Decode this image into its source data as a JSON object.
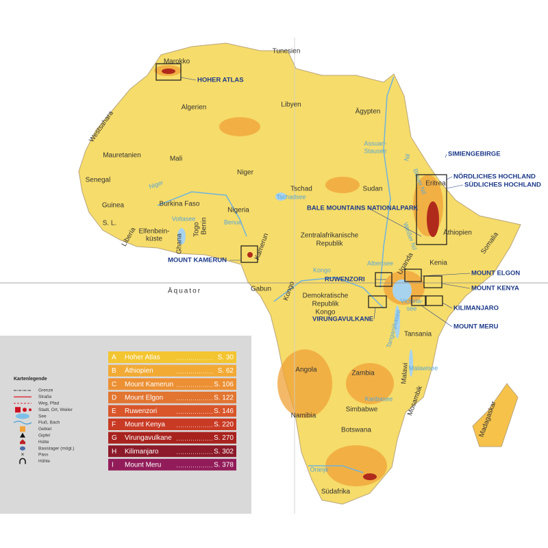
{
  "equator": "Äquator",
  "countries": [
    "Tunesien",
    "Marokko",
    "Algerien",
    "Libyen",
    "Ägypten",
    "Westsahara",
    "Mauretanien",
    "Mali",
    "Niger",
    "Tschad",
    "Sudan",
    "Eritrea",
    "Senegal",
    "Guinea",
    "Burkina Faso",
    "Nigeria",
    "S. L.",
    "Elfenbein-",
    "küste",
    "Liberia",
    "Ghana",
    "Togo",
    "Benin",
    "Kamerun",
    "Zentralafrikanische",
    "Republik",
    "Äthiopien",
    "Somalia",
    "Uganda",
    "Kenia",
    "Gabun",
    "Kongo",
    "Demokratische",
    "Republik",
    "Kongo",
    "Tansania",
    "Angola",
    "Zambia",
    "Malawi",
    "Mosambik",
    "Simbabwe",
    "Namibia",
    "Botswana",
    "Südafrika",
    "Madagaskar"
  ],
  "waters": [
    "Niger",
    "Voltasee",
    "Benue",
    "Tschadsee",
    "Nil",
    "Assuan-",
    "Stausee",
    "Blauer Nil",
    "Weißer Nil",
    "Kongo",
    "Albertsee",
    "Victoria-",
    "see",
    "Tanganjikasee",
    "Malawisee",
    "Karibasee",
    "Oranje"
  ],
  "regions": [
    "HOHER ATLAS",
    "SIMIENGEBIRGE",
    "NÖRDLICHES HOCHLAND",
    "SÜDLICHES HOCHLAND",
    "BALE MOUNTAINS NATIONALPARK",
    "MOUNT KAMERUN",
    "RUWENZORI",
    "MOUNT ELGON",
    "MOUNT KENYA",
    "KILIMANJARO",
    "VIRUNGAVULKANE",
    "MOUNT MERU"
  ],
  "legend": {
    "title": "Kartenlegende",
    "items": [
      "Grenze",
      "Straße",
      "Weg, Pfad",
      "Stadt, Ort, Weiler",
      "See",
      "Fluß, Bach",
      "Gebiet",
      "Gipfel",
      "Hütte",
      "Basislager (mögl.)",
      "Pass",
      "Höhle"
    ]
  },
  "index": [
    {
      "letter": "A",
      "name": "Hoher Atlas",
      "page": "S. 30",
      "color": "#f3c530"
    },
    {
      "letter": "B",
      "name": "Äthiopien",
      "page": "S. 62",
      "color": "#f2aa35"
    },
    {
      "letter": "C",
      "name": "Mount Kamerun",
      "page": "S. 106",
      "color": "#ec9033"
    },
    {
      "letter": "D",
      "name": "Mount Elgon",
      "page": "S. 122",
      "color": "#e27530"
    },
    {
      "letter": "E",
      "name": "Ruwenzori",
      "page": "S. 146",
      "color": "#d9562a"
    },
    {
      "letter": "F",
      "name": "Mount Kenya",
      "page": "S. 220",
      "color": "#c93a24"
    },
    {
      "letter": "G",
      "name": "Virungavulkane",
      "page": "S. 270",
      "color": "#a8221e"
    },
    {
      "letter": "H",
      "name": "Kilimanjaro",
      "page": "S. 302",
      "color": "#8c1a2a"
    },
    {
      "letter": "I",
      "name": "Mount Meru",
      "page": "S. 378",
      "color": "#921c5a"
    }
  ]
}
